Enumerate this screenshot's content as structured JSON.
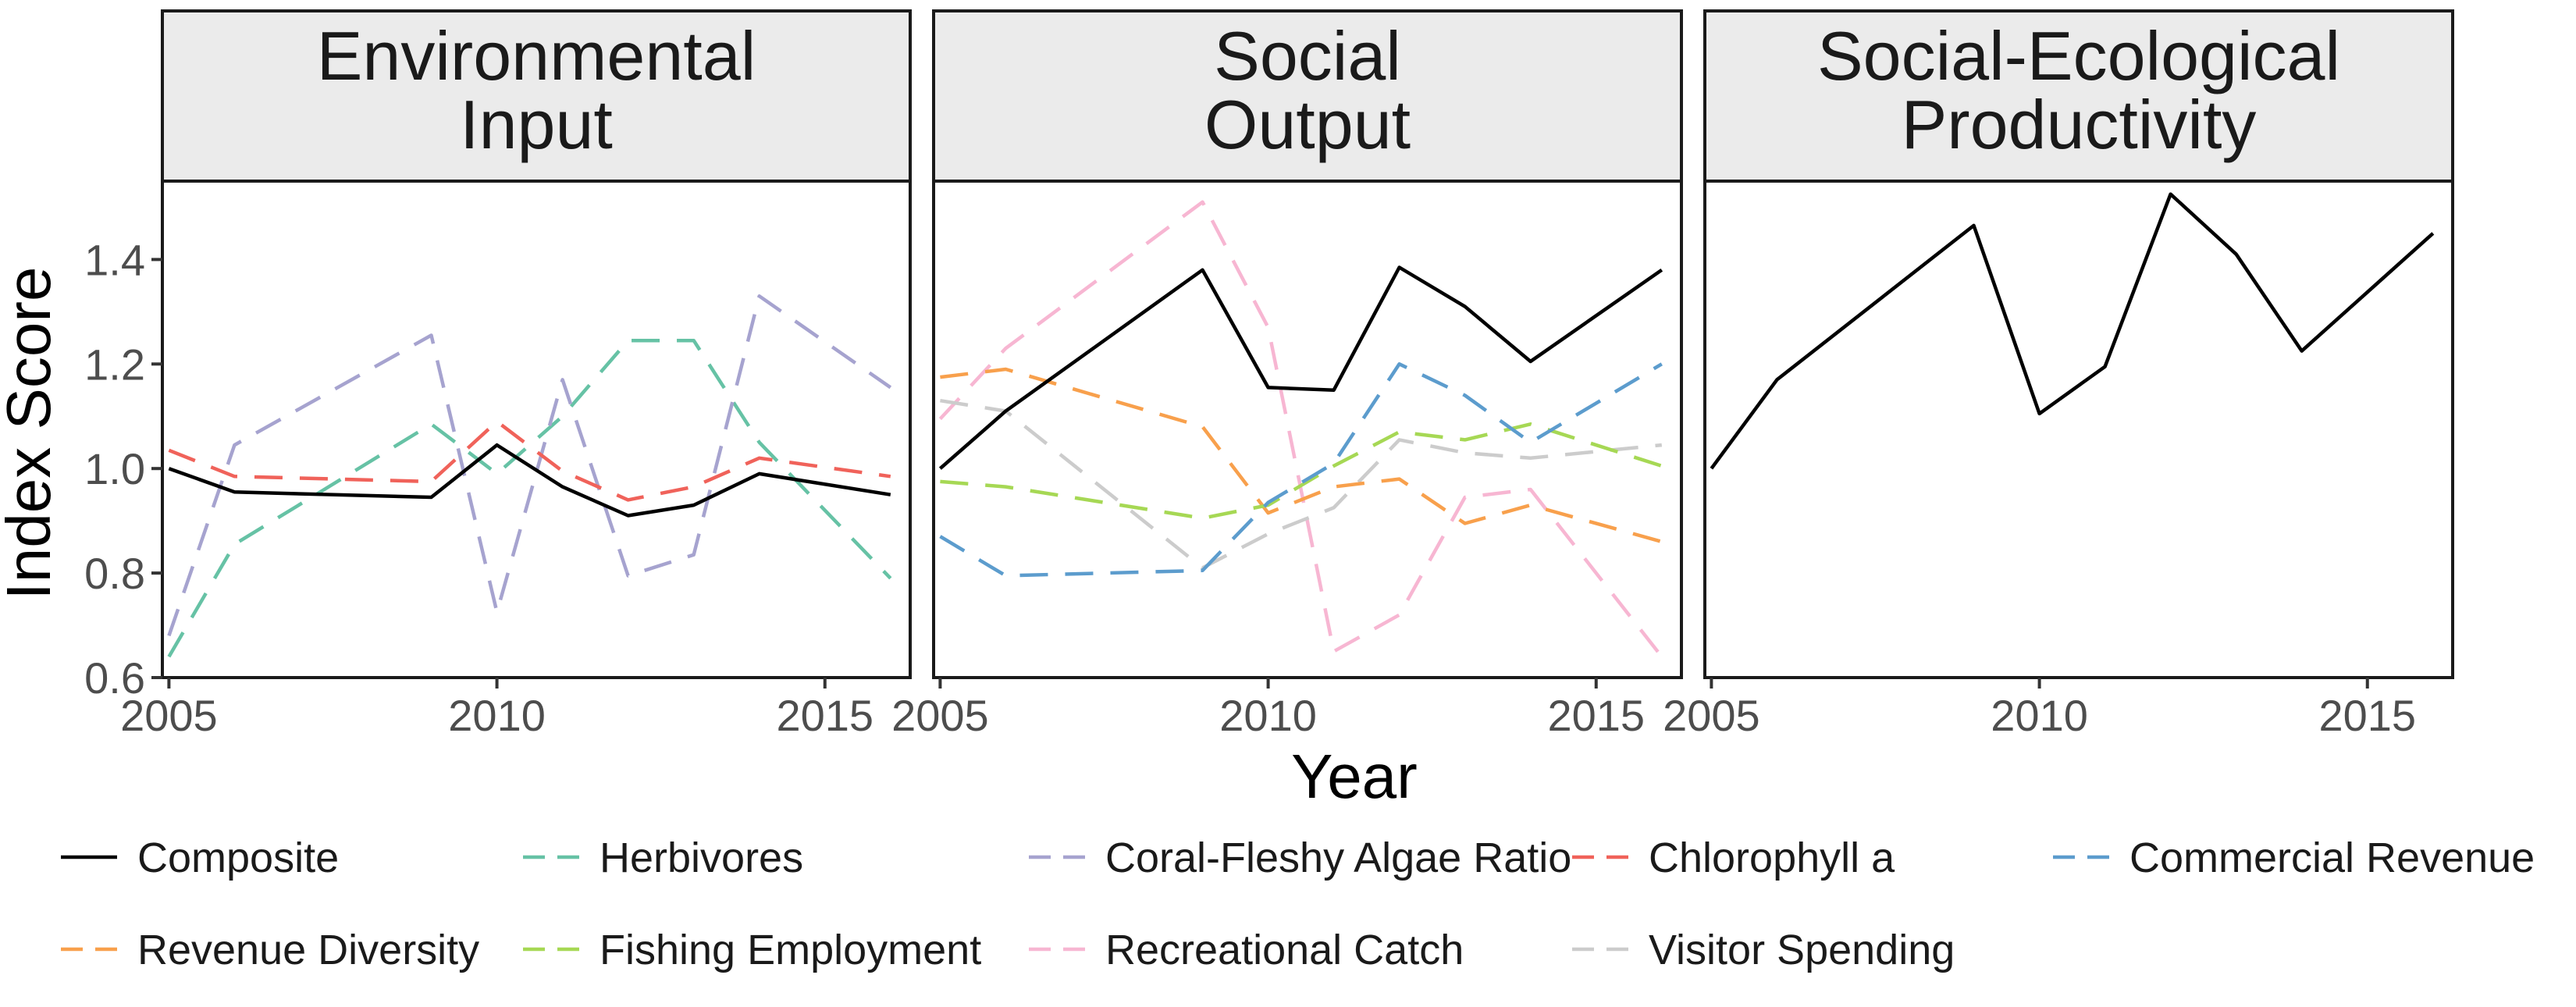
{
  "chart_data": {
    "type": "line",
    "xlabel": "Year",
    "ylabel": "Index Score",
    "xlim": [
      2004.9,
      2016.3
    ],
    "ylim": [
      0.6,
      1.55
    ],
    "x_ticks": [
      "2005",
      "2010",
      "2015"
    ],
    "y_ticks": [
      "0.6",
      "0.8",
      "1.0",
      "1.2",
      "1.4"
    ],
    "grid": false,
    "legend_position": "bottom",
    "colors": {
      "Composite": "#000000",
      "Herbivores": "#66c2a5",
      "Coral-Fleshy Algae Ratio": "#a6a3cf",
      "Chlorophyll a": "#f0625a",
      "Commercial Revenue": "#5c9ccd",
      "Revenue Diversity": "#f8a04c",
      "Fishing Employment": "#a6d854",
      "Recreational Catch": "#f7b6d2",
      "Visitor Spending": "#cccccc"
    },
    "legend": [
      {
        "name": "Composite",
        "dash": "solid"
      },
      {
        "name": "Herbivores",
        "dash": "dashed"
      },
      {
        "name": "Coral-Fleshy Algae Ratio",
        "dash": "dashed"
      },
      {
        "name": "Chlorophyll a",
        "dash": "dashed"
      },
      {
        "name": "Commercial Revenue",
        "dash": "dashed"
      },
      {
        "name": "Revenue Diversity",
        "dash": "dashed"
      },
      {
        "name": "Fishing Employment",
        "dash": "dashed"
      },
      {
        "name": "Recreational Catch",
        "dash": "dashed"
      },
      {
        "name": "Visitor Spending",
        "dash": "dashed"
      }
    ],
    "panels": [
      {
        "title_lines": [
          "Environmental",
          "Input"
        ],
        "series": [
          {
            "name": "Herbivores",
            "x": [
              2005,
              2006,
              2009,
              2010,
              2011,
              2012,
              2013,
              2014,
              2016
            ],
            "y": [
              0.64,
              0.855,
              1.085,
              0.99,
              1.1,
              1.245,
              1.245,
              1.05,
              0.79
            ]
          },
          {
            "name": "Coral-Fleshy Algae Ratio",
            "x": [
              2005,
              2006,
              2009,
              2010,
              2011,
              2012,
              2013,
              2014,
              2016
            ],
            "y": [
              0.68,
              1.045,
              1.255,
              0.725,
              1.17,
              0.795,
              0.835,
              1.33,
              1.155
            ]
          },
          {
            "name": "Chlorophyll a",
            "x": [
              2005,
              2006,
              2009,
              2010,
              2011,
              2012,
              2013,
              2014,
              2016
            ],
            "y": [
              1.035,
              0.985,
              0.975,
              1.09,
              0.995,
              0.94,
              0.965,
              1.02,
              0.985
            ]
          },
          {
            "name": "Composite",
            "x": [
              2005,
              2006,
              2009,
              2010,
              2011,
              2012,
              2013,
              2014,
              2016
            ],
            "y": [
              1.0,
              0.955,
              0.945,
              1.045,
              0.965,
              0.91,
              0.93,
              0.99,
              0.95
            ]
          }
        ]
      },
      {
        "title_lines": [
          "Social",
          "Output"
        ],
        "series": [
          {
            "name": "Recreational Catch",
            "x": [
              2005,
              2006,
              2009,
              2010,
              2011,
              2012,
              2013,
              2014,
              2016
            ],
            "y": [
              1.095,
              1.23,
              1.51,
              1.27,
              0.65,
              0.72,
              0.945,
              0.96,
              0.64
            ]
          },
          {
            "name": "Visitor Spending",
            "x": [
              2005,
              2006,
              2009,
              2010,
              2011,
              2012,
              2013,
              2014,
              2016
            ],
            "y": [
              1.13,
              1.11,
              0.81,
              0.875,
              0.925,
              1.055,
              1.03,
              1.02,
              1.045
            ]
          },
          {
            "name": "Revenue Diversity",
            "x": [
              2005,
              2006,
              2009,
              2010,
              2011,
              2012,
              2013,
              2014,
              2016
            ],
            "y": [
              1.175,
              1.19,
              1.08,
              0.915,
              0.965,
              0.98,
              0.895,
              0.93,
              0.86
            ]
          },
          {
            "name": "Fishing Employment",
            "x": [
              2005,
              2006,
              2009,
              2010,
              2011,
              2012,
              2013,
              2014,
              2016
            ],
            "y": [
              0.975,
              0.965,
              0.905,
              0.93,
              1.005,
              1.07,
              1.055,
              1.085,
              1.005
            ]
          },
          {
            "name": "Commercial Revenue",
            "x": [
              2005,
              2006,
              2009,
              2010,
              2011,
              2012,
              2013,
              2014,
              2016
            ],
            "y": [
              0.87,
              0.795,
              0.805,
              0.935,
              1.01,
              1.2,
              1.14,
              1.05,
              1.2
            ]
          },
          {
            "name": "Composite",
            "x": [
              2005,
              2006,
              2009,
              2010,
              2011,
              2012,
              2013,
              2014,
              2016
            ],
            "y": [
              1.0,
              1.11,
              1.38,
              1.155,
              1.15,
              1.385,
              1.31,
              1.205,
              1.38
            ]
          }
        ]
      },
      {
        "title_lines": [
          "Social-Ecological",
          "Productivity"
        ],
        "series": [
          {
            "name": "Composite",
            "x": [
              2005,
              2006,
              2009,
              2010,
              2011,
              2012,
              2013,
              2014,
              2016
            ],
            "y": [
              1.0,
              1.17,
              1.465,
              1.105,
              1.195,
              1.525,
              1.41,
              1.225,
              1.45
            ]
          }
        ]
      }
    ]
  }
}
